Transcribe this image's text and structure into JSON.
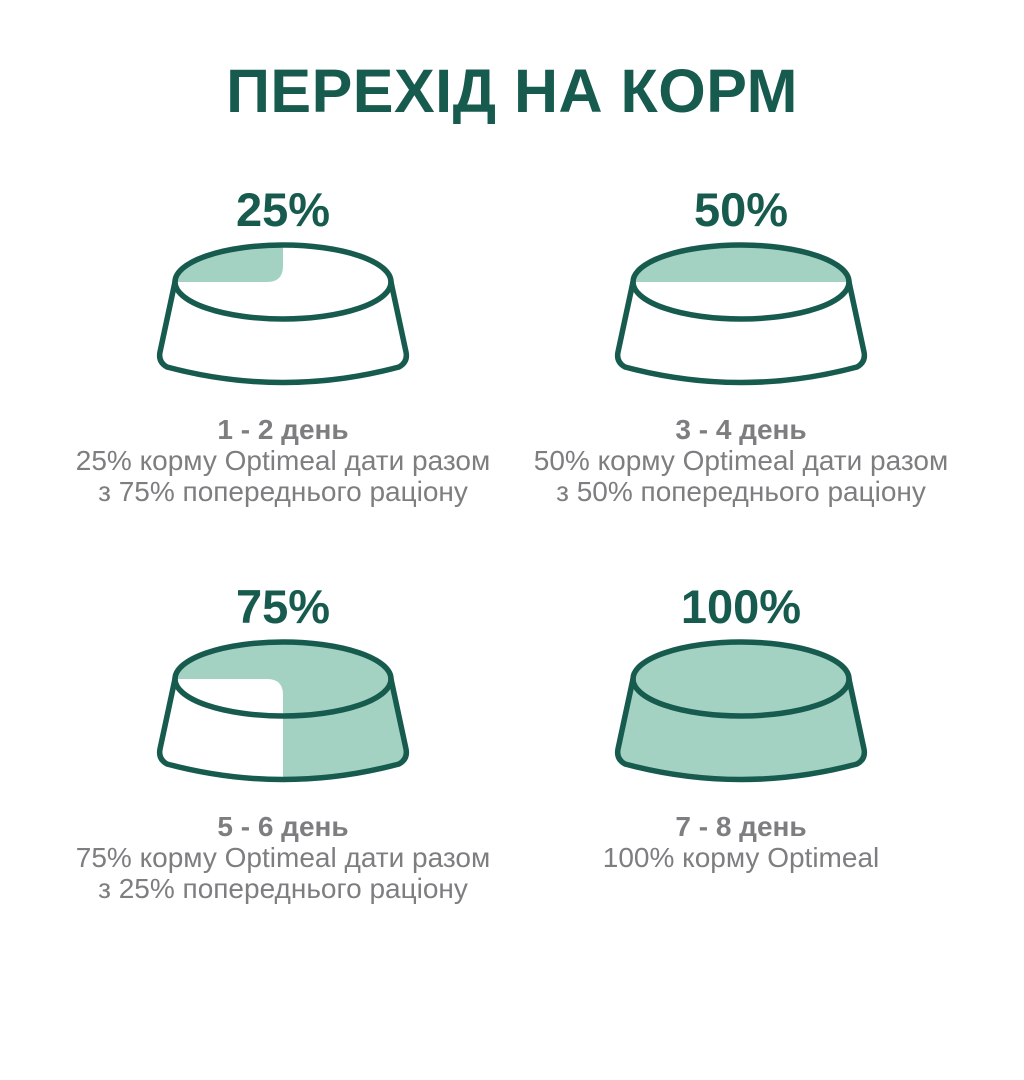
{
  "title": "ПЕРЕХІД НА КОРМ",
  "colors": {
    "dark_teal": "#175B4F",
    "fill_teal": "#A3D2C3",
    "text_gray": "#7E7E80",
    "background": "#FFFFFF"
  },
  "steps": [
    {
      "percent_label": "25%",
      "fill_percent": 25,
      "day_label": "1 - 2 день",
      "line1": "25% корму Optimeal дати разом",
      "line2": "з 75% попереднього раціону"
    },
    {
      "percent_label": "50%",
      "fill_percent": 50,
      "day_label": "3 - 4 день",
      "line1": "50% корму Optimeal дати разом",
      "line2": "з 50% попереднього раціону"
    },
    {
      "percent_label": "75%",
      "fill_percent": 75,
      "day_label": "5 - 6 день",
      "line1": "75% корму Optimeal дати разом",
      "line2": "з 25% попереднього раціону"
    },
    {
      "percent_label": "100%",
      "fill_percent": 100,
      "day_label": "7 - 8 день",
      "line1": "100% корму Optimeal"
    }
  ]
}
